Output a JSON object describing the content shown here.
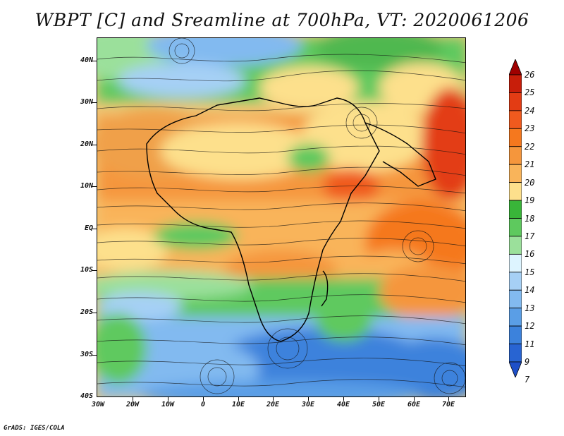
{
  "title": "WBPT [C] and Sreamline at 700hPa, VT: 2020061206",
  "footer": "GrADS: IGES/COLA",
  "lat_labels": [
    "40N",
    "30N",
    "20N",
    "10N",
    "EQ",
    "10S",
    "20S",
    "30S",
    "40S"
  ],
  "lon_labels": [
    "30W",
    "20W",
    "10W",
    "0",
    "10E",
    "20E",
    "30E",
    "40E",
    "50E",
    "60E",
    "70E"
  ],
  "colorbar": {
    "labels": [
      "26",
      "25",
      "24",
      "23",
      "22",
      "21",
      "20",
      "19",
      "18",
      "17",
      "16",
      "15",
      "14",
      "13",
      "12",
      "11",
      "9",
      "7"
    ],
    "colors": [
      "#a00000",
      "#c81e0a",
      "#e33c14",
      "#f05a1e",
      "#f5781e",
      "#f5963c",
      "#f9b45a",
      "#fde08c",
      "#39b539",
      "#5ec95e",
      "#9be09b",
      "#ddf4ff",
      "#a6d0f5",
      "#82baf0",
      "#5a9ee6",
      "#3c82dc",
      "#2864d2",
      "#1e4fc8"
    ]
  },
  "map": {
    "lon_range": [
      "30W",
      "75E"
    ],
    "lat_range": [
      "40S",
      "45N"
    ],
    "variable": "WBPT",
    "level": "700hPa",
    "overlay": "streamlines"
  }
}
